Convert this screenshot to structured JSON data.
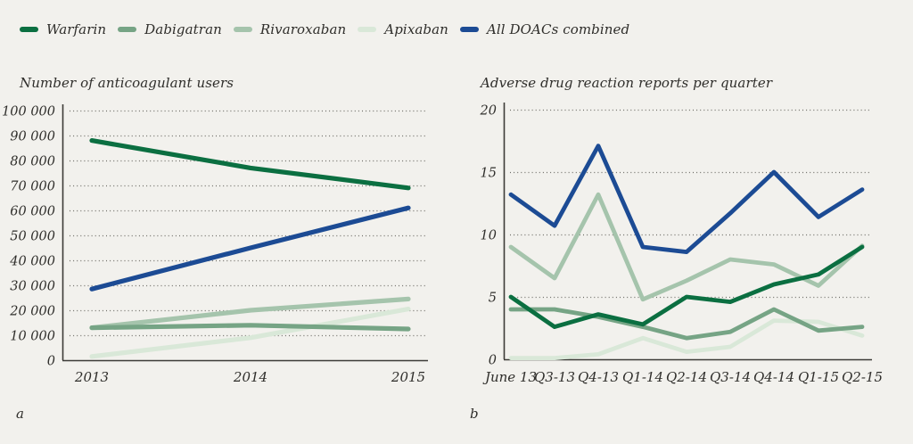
{
  "figure": {
    "background": "#f2f1ed",
    "panel_letters": [
      "a",
      "b"
    ]
  },
  "legend": {
    "items": [
      {
        "label": "Warfarin",
        "color": "#0b6f41"
      },
      {
        "label": "Dabigatran",
        "color": "#76a485"
      },
      {
        "label": "Rivaroxaban",
        "color": "#a5c4ac"
      },
      {
        "label": "Apixaban",
        "color": "#d9e8d8"
      },
      {
        "label": "All DOACs combined",
        "color": "#1c4b94"
      }
    ]
  },
  "chart_data": [
    {
      "type": "line",
      "panel": "a",
      "title": "Number of anticoagulant users",
      "categories": [
        "2013",
        "2014",
        "2015"
      ],
      "ylim": [
        0,
        100000
      ],
      "grid": "dotted-horizontal",
      "legend_position": "top-of-figure",
      "yticks": [
        {
          "value": 0,
          "label": "0"
        },
        {
          "value": 10000,
          "label": "10 000"
        },
        {
          "value": 20000,
          "label": "20 000"
        },
        {
          "value": 30000,
          "label": "30 000"
        },
        {
          "value": 40000,
          "label": "40 000"
        },
        {
          "value": 50000,
          "label": "50 000"
        },
        {
          "value": 60000,
          "label": "60 000"
        },
        {
          "value": 70000,
          "label": "70 000"
        },
        {
          "value": 80000,
          "label": "80 000"
        },
        {
          "value": 90000,
          "label": "90 000"
        },
        {
          "value": 100000,
          "label": "100 000"
        }
      ],
      "series": [
        {
          "name": "Warfarin",
          "color": "#0b6f41",
          "values": [
            88000,
            77000,
            69000
          ]
        },
        {
          "name": "Dabigatran",
          "color": "#76a485",
          "values": [
            13000,
            14000,
            12500
          ]
        },
        {
          "name": "Rivaroxaban",
          "color": "#a5c4ac",
          "values": [
            13000,
            20000,
            24500
          ]
        },
        {
          "name": "Apixaban",
          "color": "#d9e8d8",
          "values": [
            1500,
            9000,
            20500
          ]
        },
        {
          "name": "All DOACs combined",
          "color": "#1c4b94",
          "values": [
            28500,
            45000,
            61000
          ]
        }
      ]
    },
    {
      "type": "line",
      "panel": "b",
      "title": "Adverse drug reaction reports per quarter",
      "categories": [
        "June 13",
        "Q3-13",
        "Q4-13",
        "Q1-14",
        "Q2-14",
        "Q3-14",
        "Q4-14",
        "Q1-15",
        "Q2-15"
      ],
      "ylim": [
        0,
        20
      ],
      "grid": "dotted-horizontal",
      "legend_position": "top-of-figure",
      "yticks": [
        {
          "value": 0,
          "label": "0"
        },
        {
          "value": 5,
          "label": "5"
        },
        {
          "value": 10,
          "label": "10"
        },
        {
          "value": 15,
          "label": "15"
        },
        {
          "value": 20,
          "label": "20"
        }
      ],
      "series": [
        {
          "name": "Warfarin",
          "color": "#0b6f41",
          "values": [
            5.0,
            2.6,
            3.6,
            2.8,
            5.0,
            4.6,
            6.0,
            6.8,
            9.0
          ]
        },
        {
          "name": "Dabigatran",
          "color": "#76a485",
          "values": [
            4.0,
            4.0,
            3.4,
            2.6,
            1.7,
            2.2,
            4.0,
            2.3,
            2.6
          ]
        },
        {
          "name": "Rivaroxaban",
          "color": "#a5c4ac",
          "values": [
            9.0,
            6.5,
            13.2,
            4.8,
            6.3,
            8.0,
            7.6,
            5.9,
            9.1
          ]
        },
        {
          "name": "Apixaban",
          "color": "#d9e8d8",
          "values": [
            0.1,
            0.1,
            0.4,
            1.7,
            0.6,
            1.0,
            3.1,
            3.0,
            1.9
          ]
        },
        {
          "name": "All DOACs combined",
          "color": "#1c4b94",
          "values": [
            13.2,
            10.7,
            17.1,
            9.0,
            8.6,
            11.7,
            15.0,
            11.4,
            13.6
          ]
        }
      ]
    }
  ]
}
